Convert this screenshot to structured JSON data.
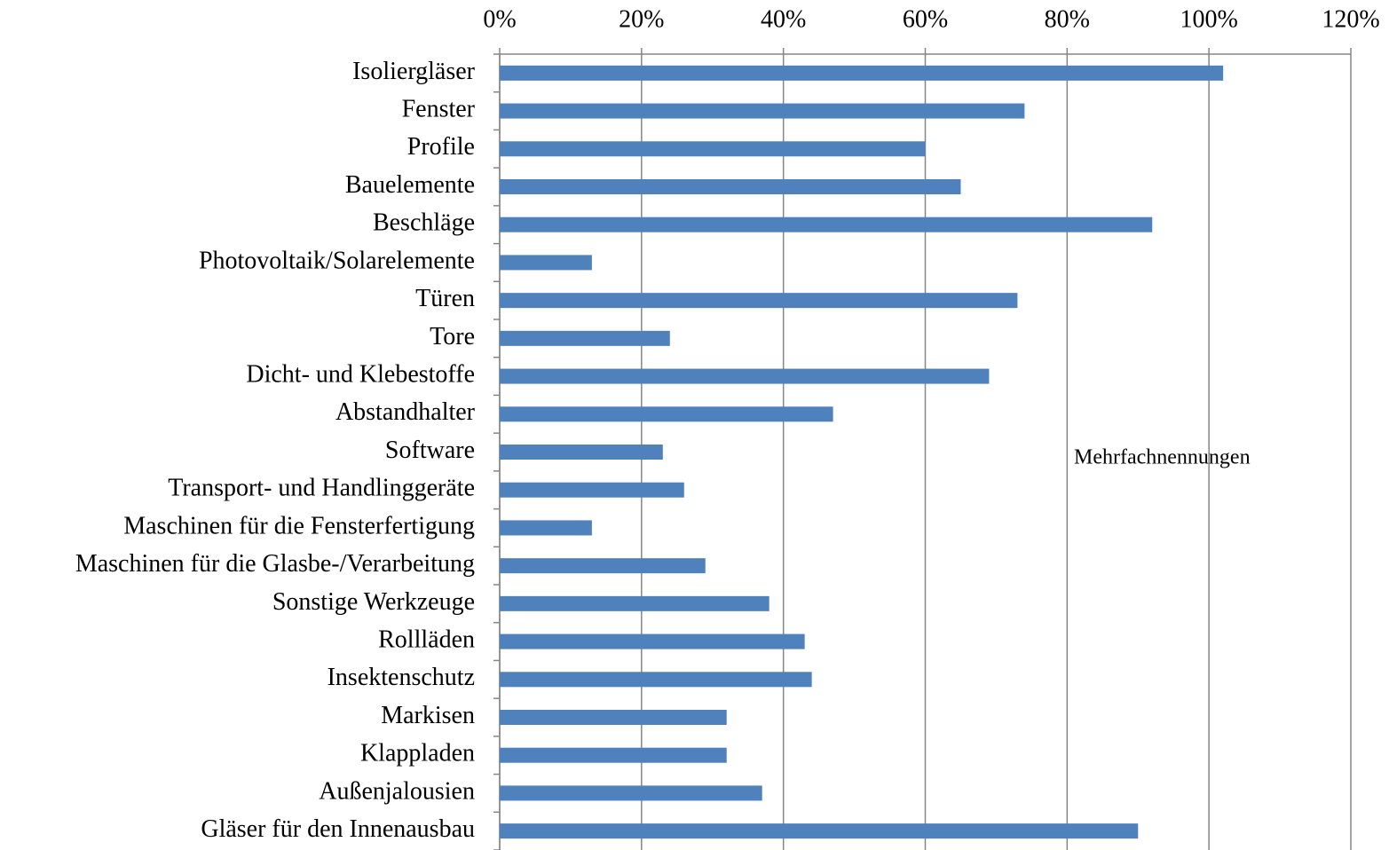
{
  "chart_data": {
    "type": "bar",
    "orientation": "horizontal",
    "categories": [
      "Isoliergläser",
      "Fenster",
      "Profile",
      "Bauelemente",
      "Beschläge",
      "Photovoltaik/Solarelemente",
      "Türen",
      "Tore",
      "Dicht- und Klebestoffe",
      "Abstandhalter",
      "Software",
      "Transport- und Handlinggeräte",
      "Maschinen für die Fensterfertigung",
      "Maschinen für die Glasbe-/Verarbeitung",
      "Sonstige Werkzeuge",
      "Rollläden",
      "Insektenschutz",
      "Markisen",
      "Klappladen",
      "Außenjalousien",
      "Gläser für den Innenausbau"
    ],
    "values": [
      102,
      74,
      60,
      65,
      92,
      13,
      73,
      24,
      69,
      47,
      23,
      26,
      13,
      29,
      38,
      43,
      44,
      32,
      32,
      37,
      90
    ],
    "color": "#4f81bd",
    "xlim": [
      0,
      120
    ],
    "xticks": [
      {
        "value": 0,
        "label": "0%"
      },
      {
        "value": 20,
        "label": "20%"
      },
      {
        "value": 40,
        "label": "40%"
      },
      {
        "value": 60,
        "label": "60%"
      },
      {
        "value": 80,
        "label": "80%"
      },
      {
        "value": 100,
        "label": "100%"
      },
      {
        "value": 120,
        "label": "120%"
      }
    ],
    "grid": true,
    "annotation": "Mehrfachnennungen"
  }
}
